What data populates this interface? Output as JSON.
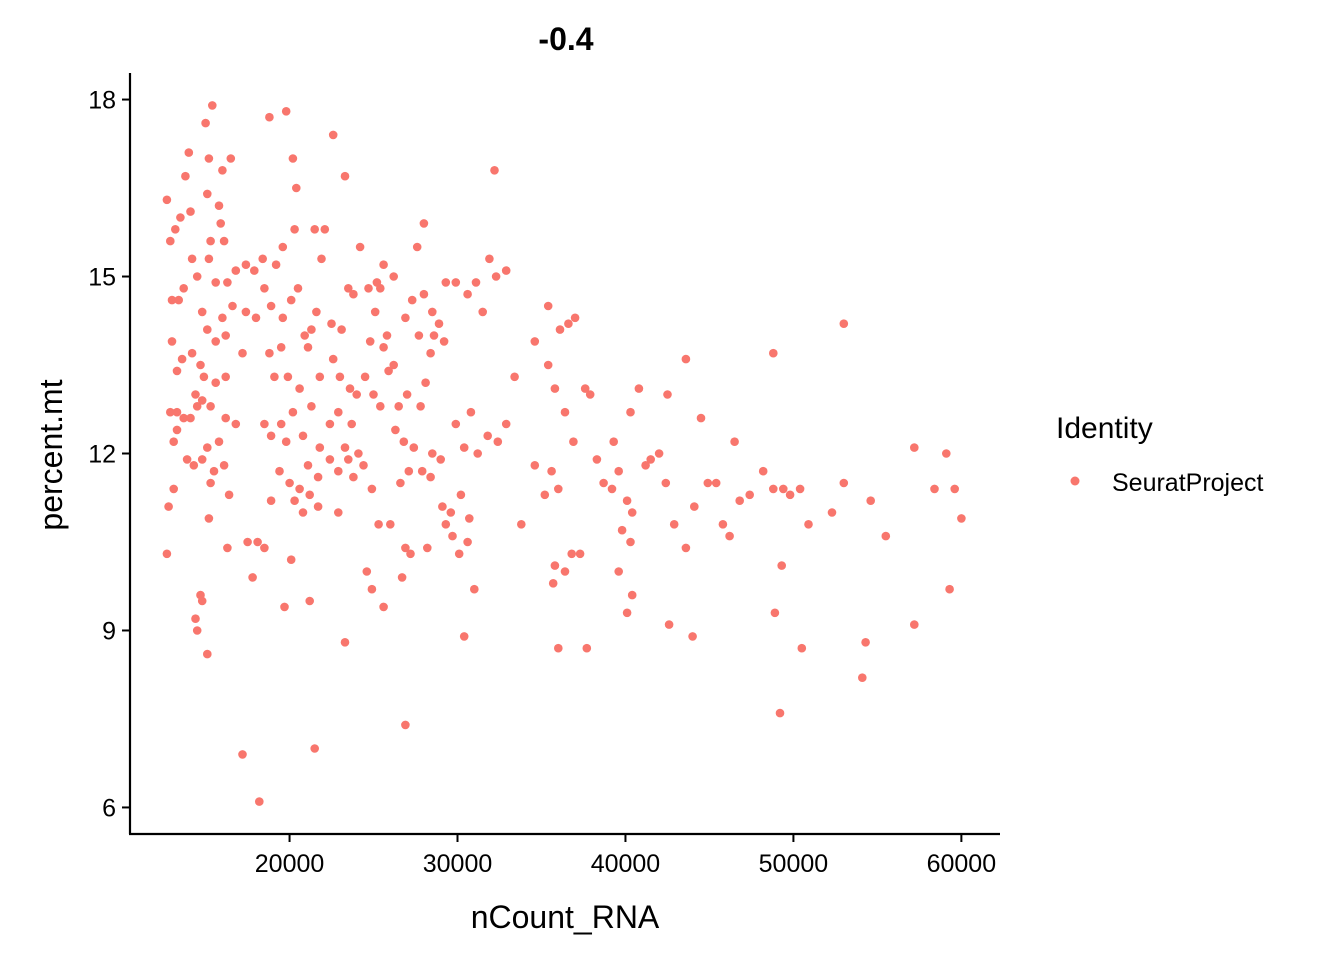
{
  "chart_data": {
    "type": "scatter",
    "title": "-0.4",
    "xlabel": "nCount_RNA",
    "ylabel": "percent.mt",
    "xlim": [
      10500,
      62300
    ],
    "ylim": [
      5.55,
      18.45
    ],
    "xticks": [
      20000,
      30000,
      40000,
      50000,
      60000
    ],
    "xtick_labels": [
      "20000",
      "30000",
      "40000",
      "50000",
      "60000"
    ],
    "yticks": [
      6,
      9,
      12,
      15,
      18
    ],
    "ytick_labels": [
      "6",
      "9",
      "12",
      "15",
      "18"
    ],
    "grid": false,
    "legend": {
      "title": "Identity",
      "placement": "right",
      "entries": [
        "SeuratProject"
      ]
    },
    "color": "#F8766D",
    "series": [
      {
        "name": "SeuratProject",
        "points": [
          [
            12700,
            16.3
          ],
          [
            12900,
            15.6
          ],
          [
            13200,
            15.8
          ],
          [
            13500,
            16.0
          ],
          [
            13800,
            16.7
          ],
          [
            14000,
            17.1
          ],
          [
            14100,
            16.1
          ],
          [
            15000,
            17.6
          ],
          [
            15400,
            17.9
          ],
          [
            15200,
            17.0
          ],
          [
            16000,
            16.8
          ],
          [
            16500,
            17.0
          ],
          [
            15800,
            16.2
          ],
          [
            15900,
            15.9
          ],
          [
            16100,
            15.6
          ],
          [
            15300,
            15.6
          ],
          [
            15100,
            16.4
          ],
          [
            13000,
            14.6
          ],
          [
            13400,
            14.6
          ],
          [
            13700,
            14.8
          ],
          [
            14200,
            15.3
          ],
          [
            14500,
            15.0
          ],
          [
            14800,
            14.4
          ],
          [
            15200,
            15.3
          ],
          [
            15600,
            14.9
          ],
          [
            16000,
            14.3
          ],
          [
            16300,
            14.9
          ],
          [
            16800,
            15.1
          ],
          [
            17400,
            15.2
          ],
          [
            17900,
            15.1
          ],
          [
            18400,
            15.3
          ],
          [
            18500,
            14.8
          ],
          [
            18000,
            14.3
          ],
          [
            17400,
            14.4
          ],
          [
            16600,
            14.5
          ],
          [
            16200,
            14.0
          ],
          [
            15600,
            13.9
          ],
          [
            15100,
            14.1
          ],
          [
            14700,
            13.5
          ],
          [
            14200,
            13.7
          ],
          [
            13600,
            13.6
          ],
          [
            13300,
            13.4
          ],
          [
            13000,
            13.9
          ],
          [
            12900,
            12.7
          ],
          [
            13300,
            12.7
          ],
          [
            13700,
            12.6
          ],
          [
            14100,
            12.6
          ],
          [
            14500,
            12.8
          ],
          [
            14800,
            12.9
          ],
          [
            15300,
            12.8
          ],
          [
            15800,
            12.2
          ],
          [
            16200,
            12.6
          ],
          [
            16800,
            12.5
          ],
          [
            17200,
            13.7
          ],
          [
            16200,
            13.3
          ],
          [
            15600,
            13.2
          ],
          [
            14900,
            13.3
          ],
          [
            14400,
            13.0
          ],
          [
            13900,
            11.9
          ],
          [
            14300,
            11.8
          ],
          [
            15100,
            12.1
          ],
          [
            15500,
            11.7
          ],
          [
            16100,
            11.8
          ],
          [
            16400,
            11.3
          ],
          [
            15300,
            11.5
          ],
          [
            14800,
            11.9
          ],
          [
            13100,
            11.4
          ],
          [
            12800,
            11.1
          ],
          [
            13300,
            12.4
          ],
          [
            13100,
            12.2
          ],
          [
            15200,
            10.9
          ],
          [
            16300,
            10.4
          ],
          [
            14700,
            9.6
          ],
          [
            14400,
            9.2
          ],
          [
            14500,
            9.0
          ],
          [
            14800,
            9.5
          ],
          [
            15100,
            8.6
          ],
          [
            17200,
            6.9
          ],
          [
            18200,
            6.1
          ],
          [
            12700,
            10.3
          ],
          [
            17500,
            10.5
          ],
          [
            17800,
            9.9
          ],
          [
            18500,
            10.4
          ],
          [
            18100,
            10.5
          ],
          [
            19700,
            9.4
          ],
          [
            20100,
            10.2
          ],
          [
            21200,
            9.5
          ],
          [
            21500,
            7.0
          ],
          [
            18800,
            17.7
          ],
          [
            19800,
            17.8
          ],
          [
            20200,
            17.0
          ],
          [
            20400,
            16.5
          ],
          [
            20300,
            15.8
          ],
          [
            19600,
            15.5
          ],
          [
            19200,
            15.2
          ],
          [
            18900,
            14.5
          ],
          [
            19600,
            14.3
          ],
          [
            20100,
            14.6
          ],
          [
            20500,
            14.8
          ],
          [
            20900,
            14.0
          ],
          [
            21300,
            14.1
          ],
          [
            21600,
            14.4
          ],
          [
            21900,
            15.3
          ],
          [
            21500,
            15.8
          ],
          [
            22100,
            15.8
          ],
          [
            22500,
            14.2
          ],
          [
            22600,
            17.4
          ],
          [
            23300,
            16.7
          ],
          [
            23100,
            14.1
          ],
          [
            23500,
            14.8
          ],
          [
            22600,
            13.6
          ],
          [
            21800,
            13.3
          ],
          [
            21100,
            13.8
          ],
          [
            20600,
            13.1
          ],
          [
            19900,
            13.3
          ],
          [
            19500,
            13.8
          ],
          [
            18800,
            13.7
          ],
          [
            19100,
            13.3
          ],
          [
            18500,
            12.5
          ],
          [
            18900,
            12.3
          ],
          [
            19500,
            12.5
          ],
          [
            19800,
            12.2
          ],
          [
            20200,
            12.7
          ],
          [
            20800,
            12.3
          ],
          [
            21300,
            12.8
          ],
          [
            21800,
            12.1
          ],
          [
            22400,
            12.5
          ],
          [
            22900,
            12.7
          ],
          [
            23300,
            12.1
          ],
          [
            23700,
            12.5
          ],
          [
            24100,
            12.0
          ],
          [
            23500,
            11.9
          ],
          [
            22900,
            11.7
          ],
          [
            22400,
            11.9
          ],
          [
            21700,
            11.6
          ],
          [
            21100,
            11.8
          ],
          [
            20600,
            11.4
          ],
          [
            20000,
            11.5
          ],
          [
            19400,
            11.7
          ],
          [
            18900,
            11.2
          ],
          [
            20300,
            11.2
          ],
          [
            20800,
            11.0
          ],
          [
            21200,
            11.3
          ],
          [
            21700,
            11.1
          ],
          [
            22900,
            11.0
          ],
          [
            23800,
            11.6
          ],
          [
            24400,
            11.8
          ],
          [
            24900,
            11.4
          ],
          [
            25300,
            10.8
          ],
          [
            25600,
            9.4
          ],
          [
            24600,
            10.0
          ],
          [
            24900,
            9.7
          ],
          [
            26000,
            10.8
          ],
          [
            26700,
            9.9
          ],
          [
            26900,
            10.4
          ],
          [
            27200,
            10.3
          ],
          [
            27100,
            11.7
          ],
          [
            26600,
            11.5
          ],
          [
            26300,
            12.4
          ],
          [
            26800,
            12.2
          ],
          [
            27400,
            12.1
          ],
          [
            27900,
            11.7
          ],
          [
            28500,
            12.0
          ],
          [
            29000,
            11.9
          ],
          [
            28400,
            11.6
          ],
          [
            29100,
            11.1
          ],
          [
            29600,
            11.0
          ],
          [
            30200,
            11.3
          ],
          [
            29300,
            10.8
          ],
          [
            29700,
            10.6
          ],
          [
            30100,
            10.3
          ],
          [
            30600,
            10.5
          ],
          [
            30700,
            10.9
          ],
          [
            31000,
            9.7
          ],
          [
            30400,
            8.9
          ],
          [
            26900,
            7.4
          ],
          [
            28200,
            10.4
          ],
          [
            23300,
            8.8
          ],
          [
            24800,
            13.9
          ],
          [
            25100,
            14.4
          ],
          [
            25400,
            14.8
          ],
          [
            25800,
            14.0
          ],
          [
            26200,
            13.5
          ],
          [
            26900,
            14.3
          ],
          [
            27300,
            14.6
          ],
          [
            27700,
            14.0
          ],
          [
            28000,
            14.7
          ],
          [
            28500,
            14.4
          ],
          [
            28900,
            14.2
          ],
          [
            29300,
            14.9
          ],
          [
            29900,
            14.9
          ],
          [
            30600,
            14.7
          ],
          [
            31100,
            14.9
          ],
          [
            31500,
            14.4
          ],
          [
            31900,
            15.3
          ],
          [
            32300,
            15.0
          ],
          [
            32900,
            15.1
          ],
          [
            32200,
            16.8
          ],
          [
            28000,
            15.9
          ],
          [
            27600,
            15.5
          ],
          [
            26200,
            15.0
          ],
          [
            25600,
            15.2
          ],
          [
            25200,
            14.9
          ],
          [
            24700,
            14.8
          ],
          [
            24200,
            15.5
          ],
          [
            23800,
            14.7
          ],
          [
            24500,
            13.3
          ],
          [
            24000,
            13.0
          ],
          [
            23600,
            13.1
          ],
          [
            23000,
            13.3
          ],
          [
            25600,
            13.8
          ],
          [
            25400,
            12.8
          ],
          [
            25000,
            13.0
          ],
          [
            25900,
            13.4
          ],
          [
            26500,
            12.8
          ],
          [
            27000,
            13.0
          ],
          [
            27800,
            12.8
          ],
          [
            28400,
            13.7
          ],
          [
            28100,
            13.2
          ],
          [
            28600,
            14.0
          ],
          [
            29200,
            13.9
          ],
          [
            29900,
            12.5
          ],
          [
            30400,
            12.1
          ],
          [
            30800,
            12.7
          ],
          [
            31200,
            12.0
          ],
          [
            31800,
            12.3
          ],
          [
            32400,
            12.2
          ],
          [
            32900,
            12.5
          ],
          [
            33400,
            13.3
          ],
          [
            33800,
            10.8
          ],
          [
            34600,
            11.8
          ],
          [
            35200,
            11.3
          ],
          [
            35600,
            11.7
          ],
          [
            36000,
            11.4
          ],
          [
            35400,
            13.5
          ],
          [
            35800,
            13.1
          ],
          [
            36400,
            12.7
          ],
          [
            36900,
            12.2
          ],
          [
            37600,
            13.1
          ],
          [
            38300,
            11.9
          ],
          [
            38700,
            11.5
          ],
          [
            39200,
            11.4
          ],
          [
            39600,
            11.7
          ],
          [
            40100,
            11.2
          ],
          [
            40400,
            11.0
          ],
          [
            41200,
            11.8
          ],
          [
            41500,
            11.9
          ],
          [
            42400,
            11.5
          ],
          [
            42900,
            10.8
          ],
          [
            43600,
            10.4
          ],
          [
            44100,
            11.1
          ],
          [
            44500,
            12.6
          ],
          [
            44900,
            11.5
          ],
          [
            45400,
            11.5
          ],
          [
            45800,
            10.8
          ],
          [
            46200,
            10.6
          ],
          [
            46800,
            11.2
          ],
          [
            47400,
            11.3
          ],
          [
            48200,
            11.7
          ],
          [
            48800,
            11.4
          ],
          [
            49400,
            11.4
          ],
          [
            49800,
            11.3
          ],
          [
            50400,
            11.4
          ],
          [
            50900,
            10.8
          ],
          [
            52300,
            11.0
          ],
          [
            53000,
            11.5
          ],
          [
            54600,
            11.2
          ],
          [
            55500,
            10.6
          ],
          [
            57200,
            12.1
          ],
          [
            58400,
            11.4
          ],
          [
            59100,
            12.0
          ],
          [
            59600,
            11.4
          ],
          [
            60000,
            10.9
          ],
          [
            59300,
            9.7
          ],
          [
            57200,
            9.1
          ],
          [
            54300,
            8.8
          ],
          [
            54100,
            8.2
          ],
          [
            50500,
            8.7
          ],
          [
            49200,
            7.6
          ],
          [
            48900,
            9.3
          ],
          [
            49300,
            10.1
          ],
          [
            44000,
            8.9
          ],
          [
            42600,
            9.1
          ],
          [
            40100,
            9.3
          ],
          [
            39600,
            10.0
          ],
          [
            40400,
            9.6
          ],
          [
            39800,
            10.7
          ],
          [
            40300,
            10.5
          ],
          [
            37700,
            8.7
          ],
          [
            36000,
            8.7
          ],
          [
            35700,
            9.8
          ],
          [
            35800,
            10.1
          ],
          [
            36800,
            10.3
          ],
          [
            37300,
            10.3
          ],
          [
            36400,
            10.0
          ],
          [
            37900,
            13.0
          ],
          [
            39300,
            12.2
          ],
          [
            40300,
            12.7
          ],
          [
            40800,
            13.1
          ],
          [
            42500,
            13.0
          ],
          [
            43600,
            13.6
          ],
          [
            48800,
            13.7
          ],
          [
            53000,
            14.2
          ],
          [
            35400,
            14.5
          ],
          [
            36100,
            14.1
          ],
          [
            36600,
            14.2
          ],
          [
            37000,
            14.3
          ],
          [
            34600,
            13.9
          ],
          [
            42000,
            12.0
          ],
          [
            46500,
            12.2
          ]
        ]
      }
    ]
  }
}
